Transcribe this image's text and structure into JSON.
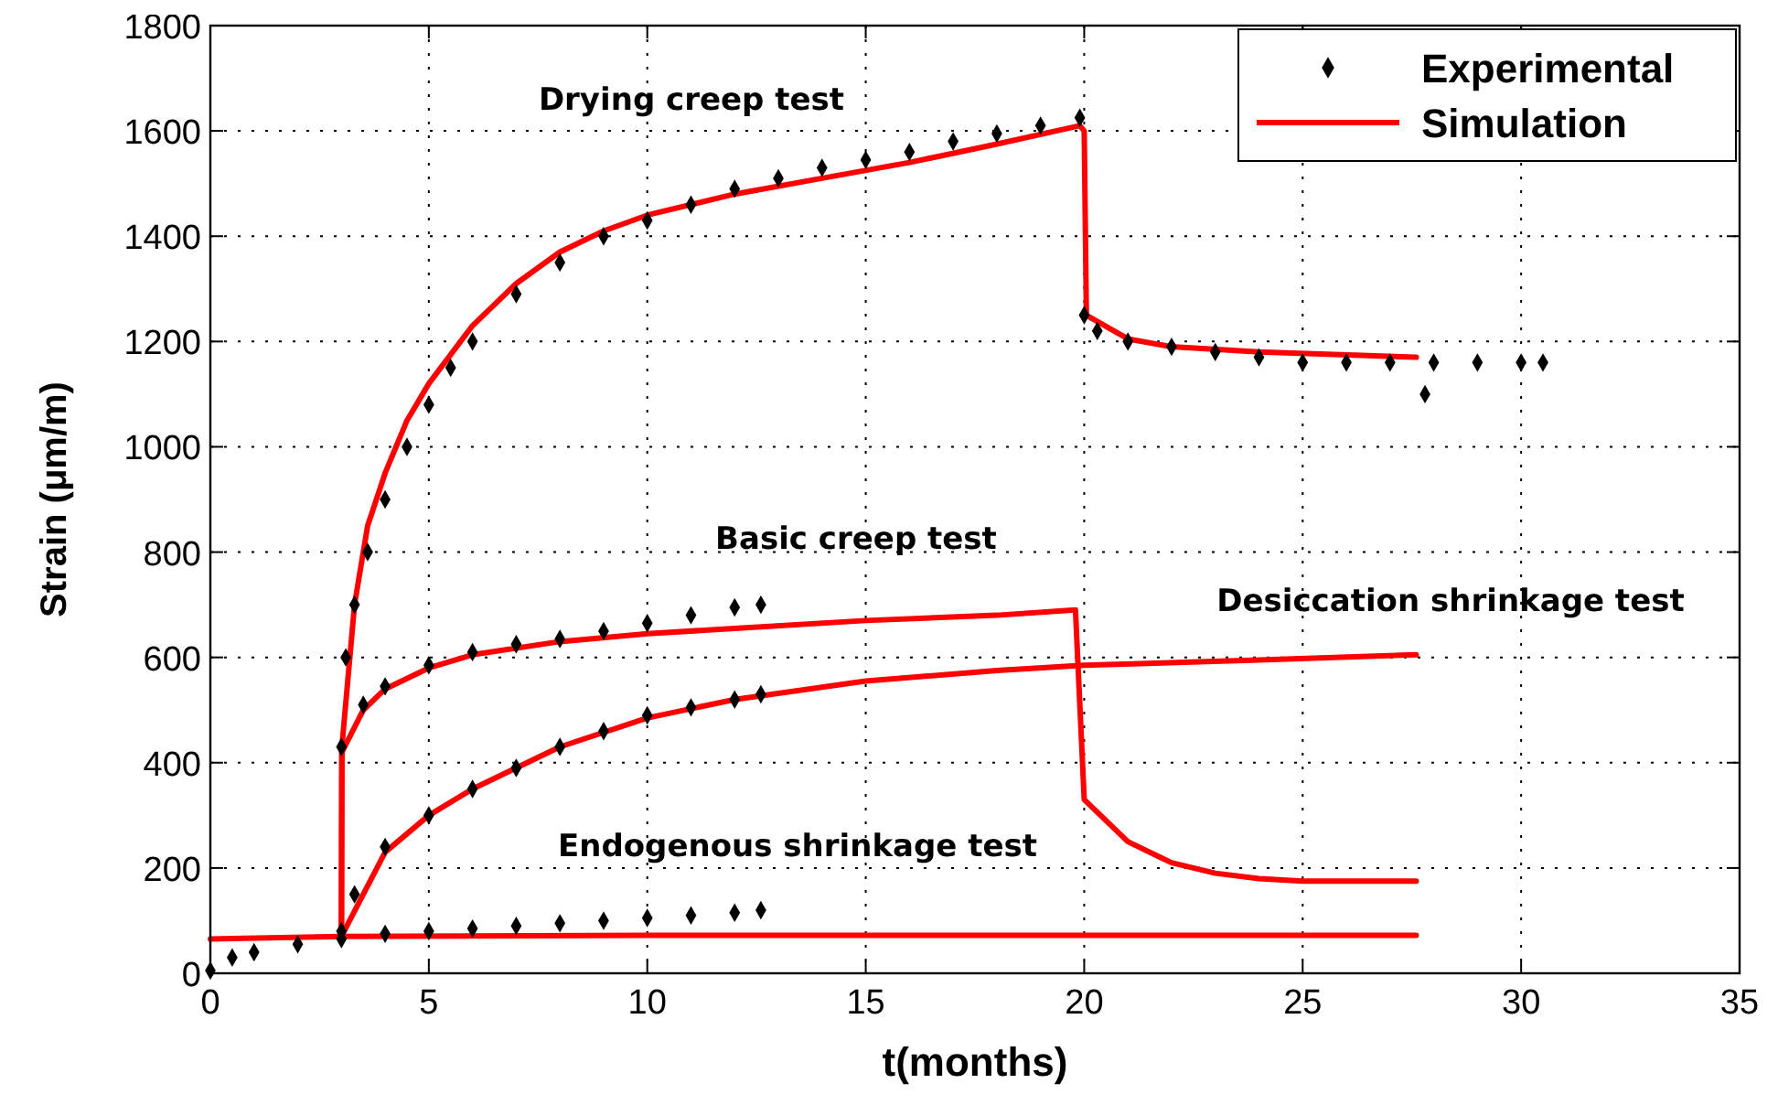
{
  "chart_data": {
    "type": "line",
    "xlabel": "t(months)",
    "ylabel": "Strain (μm/m)",
    "xlim": [
      0,
      35
    ],
    "ylim": [
      0,
      1800
    ],
    "xticks": [
      0,
      5,
      10,
      15,
      20,
      25,
      30,
      35
    ],
    "yticks": [
      0,
      200,
      400,
      600,
      800,
      1000,
      1200,
      1400,
      1600,
      1800
    ],
    "grid": true,
    "legend": "top right",
    "annotations": [
      "Drying creep test",
      "Basic creep test",
      "Desiccation shrinkage test",
      "Endogenous shrinkage test"
    ],
    "series": [
      {
        "name": "Experimental",
        "type": "scatter",
        "marker": "diamond",
        "color": "#000000",
        "x": [
          3.0,
          3.1,
          3.3,
          3.6,
          4,
          4.5,
          5,
          5.5,
          6,
          7,
          8,
          9,
          10,
          11,
          12,
          13,
          14,
          15,
          16,
          17,
          18,
          19,
          19.9,
          20,
          20.3,
          21,
          22,
          23,
          24,
          25,
          26,
          27,
          27.8,
          28,
          29,
          30,
          30.5
        ],
        "values": [
          430,
          600,
          700,
          800,
          900,
          1000,
          1080,
          1150,
          1200,
          1290,
          1350,
          1400,
          1430,
          1460,
          1490,
          1510,
          1530,
          1545,
          1560,
          1580,
          1595,
          1610,
          1625,
          1250,
          1220,
          1200,
          1190,
          1180,
          1170,
          1160,
          1160,
          1160,
          1100,
          1160,
          1160,
          1160,
          1160
        ]
      },
      {
        "type": "scatter",
        "marker": "diamond",
        "color": "#000000",
        "x": [
          3.5,
          4,
          5,
          6,
          7,
          8,
          9,
          10,
          11,
          12,
          12.6
        ],
        "values": [
          510,
          545,
          585,
          610,
          625,
          635,
          650,
          665,
          680,
          695,
          700
        ]
      },
      {
        "type": "scatter",
        "marker": "diamond",
        "color": "#000000",
        "x": [
          3,
          3.3,
          4,
          5,
          6,
          7,
          8,
          9,
          10,
          11,
          12,
          12.6
        ],
        "values": [
          80,
          150,
          240,
          300,
          350,
          390,
          430,
          460,
          490,
          505,
          520,
          530
        ]
      },
      {
        "type": "scatter",
        "marker": "diamond",
        "color": "#000000",
        "x": [
          0,
          0.5,
          1,
          2,
          3,
          4,
          5,
          6,
          7,
          8,
          9,
          10,
          11,
          12,
          12.6
        ],
        "values": [
          5,
          30,
          40,
          55,
          65,
          75,
          80,
          85,
          90,
          95,
          100,
          105,
          110,
          115,
          120
        ]
      },
      {
        "name": "Simulation",
        "line_style": "solid",
        "color": "#ff0000",
        "x": [
          3,
          3.01,
          3.3,
          3.6,
          4,
          4.5,
          5,
          6,
          7,
          8,
          9,
          10,
          12,
          14,
          16,
          18,
          19.9,
          20,
          20.05,
          21,
          22,
          24,
          27.6
        ],
        "values": [
          70,
          430,
          700,
          850,
          950,
          1050,
          1120,
          1230,
          1310,
          1370,
          1410,
          1440,
          1480,
          1510,
          1540,
          1575,
          1610,
          1600,
          1250,
          1205,
          1190,
          1180,
          1170
        ]
      },
      {
        "line_style": "solid",
        "color": "#ff0000",
        "x": [
          3,
          3.01,
          3.5,
          4,
          5,
          6,
          8,
          10,
          12,
          15,
          18,
          19.8,
          20,
          21,
          22,
          23,
          24,
          25,
          27.6
        ],
        "values": [
          70,
          420,
          500,
          540,
          580,
          605,
          630,
          645,
          655,
          670,
          680,
          690,
          330,
          250,
          210,
          190,
          180,
          175,
          175
        ]
      },
      {
        "line_style": "solid",
        "color": "#ff0000",
        "x": [
          3,
          3.5,
          4,
          5,
          6,
          8,
          10,
          12,
          15,
          18,
          20,
          24,
          27.6
        ],
        "values": [
          70,
          150,
          230,
          300,
          350,
          430,
          485,
          520,
          555,
          575,
          585,
          595,
          605
        ]
      },
      {
        "line_style": "solid",
        "color": "#ff0000",
        "x": [
          0,
          3,
          10,
          27.6
        ],
        "values": [
          65,
          70,
          72,
          72
        ]
      }
    ]
  }
}
